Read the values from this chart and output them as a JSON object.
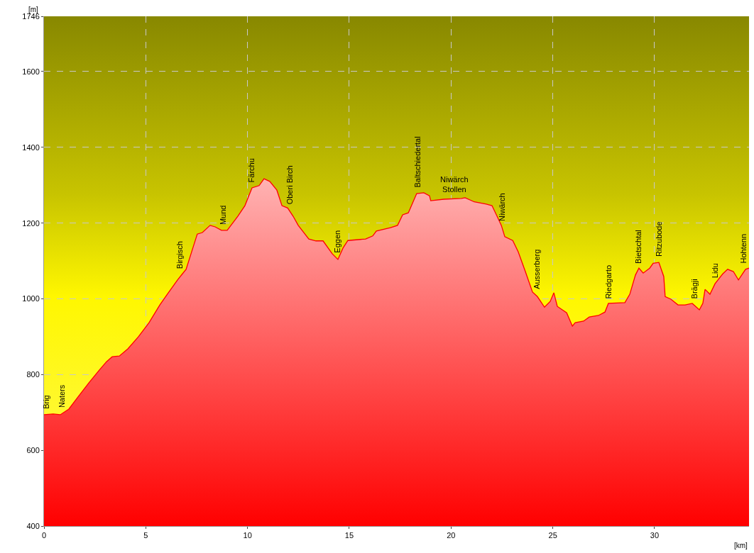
{
  "chart_data": {
    "type": "area",
    "xlabel": "[km]",
    "ylabel": "[m]",
    "xlim": [
      0,
      34.64
    ],
    "xticks": [
      0,
      5,
      10,
      15,
      20,
      25,
      30
    ],
    "ylim": [
      400,
      1746
    ],
    "yticks": [
      400,
      600,
      800,
      1000,
      1200,
      1400,
      1600,
      1746
    ],
    "grid": true,
    "line_style": "solid",
    "series": [
      {
        "color": "#ff0000",
        "x": [
          0,
          0.45,
          0.8,
          1.22,
          1.67,
          2.2,
          2.72,
          3.07,
          3.35,
          3.7,
          4.12,
          4.64,
          5.16,
          5.69,
          6.03,
          6.56,
          6.98,
          7.53,
          7.78,
          8.16,
          8.41,
          8.72,
          9.0,
          9.52,
          9.87,
          10.22,
          10.57,
          10.81,
          11.09,
          11.44,
          11.69,
          11.97,
          12.24,
          12.49,
          13.01,
          13.36,
          13.71,
          14.16,
          14.44,
          14.69,
          14.93,
          15.8,
          16.15,
          16.33,
          17.02,
          17.37,
          17.62,
          17.9,
          18.31,
          18.66,
          18.94,
          19.0,
          19.64,
          20.51,
          20.69,
          21.14,
          21.73,
          22.01,
          22.26,
          22.47,
          22.64,
          23.03,
          23.3,
          23.65,
          24.0,
          24.24,
          24.59,
          24.87,
          25.05,
          25.22,
          25.68,
          25.96,
          26.1,
          26.51,
          26.79,
          27.24,
          27.56,
          27.73,
          28.54,
          28.78,
          29.06,
          29.23,
          29.44,
          29.76,
          29.93,
          30.21,
          30.45,
          30.52,
          30.8,
          31.15,
          31.5,
          31.85,
          32.2,
          32.37,
          32.48,
          32.72,
          32.97,
          33.35,
          33.59,
          33.87,
          34.12,
          34.47,
          34.64
        ],
        "values": [
          694,
          696,
          694,
          709,
          741,
          778,
          812,
          834,
          847,
          849,
          868,
          900,
          937,
          984,
          1010,
          1050,
          1078,
          1171,
          1175,
          1194,
          1190,
          1181,
          1181,
          1218,
          1246,
          1293,
          1299,
          1317,
          1310,
          1287,
          1246,
          1240,
          1218,
          1194,
          1158,
          1153,
          1153,
          1119,
          1104,
          1134,
          1154,
          1158,
          1166,
          1179,
          1188,
          1194,
          1222,
          1227,
          1278,
          1280,
          1272,
          1259,
          1263,
          1265,
          1267,
          1256,
          1250,
          1246,
          1218,
          1194,
          1164,
          1154,
          1124,
          1072,
          1018,
          1006,
          978,
          993,
          1016,
          980,
          963,
          928,
          937,
          941,
          952,
          956,
          965,
          988,
          990,
          1012,
          1063,
          1081,
          1068,
          1081,
          1094,
          1096,
          1059,
          1006,
          999,
          984,
          984,
          988,
          971,
          988,
          1025,
          1012,
          1040,
          1066,
          1078,
          1072,
          1050,
          1078,
          1081
        ]
      }
    ],
    "annotations": [
      {
        "text": "Brig",
        "x": 0.1,
        "y": 694
      },
      {
        "text": "Naters",
        "x": 0.9,
        "y": 698
      },
      {
        "text": "Birgisch",
        "x": 6.66,
        "y": 1065
      },
      {
        "text": "Mund",
        "x": 8.8,
        "y": 1181
      },
      {
        "text": "Färchu",
        "x": 10.2,
        "y": 1293
      },
      {
        "text": "Oberi Birch",
        "x": 12.1,
        "y": 1235
      },
      {
        "text": "Eggen",
        "x": 14.4,
        "y": 1106
      },
      {
        "text": "Baltschiedertal",
        "x": 18.35,
        "y": 1279
      },
      {
        "text": "Niwärch\nStollen",
        "x": 20.15,
        "y": 1266
      },
      {
        "text": "Niwärch",
        "x": 22.5,
        "y": 1190
      },
      {
        "text": "Ausserberg",
        "x": 24.2,
        "y": 1010
      },
      {
        "text": "Riedgarto",
        "x": 27.7,
        "y": 985
      },
      {
        "text": "Bietschtal",
        "x": 29.2,
        "y": 1078
      },
      {
        "text": "Ritzubode",
        "x": 30.2,
        "y": 1096
      },
      {
        "text": "Brägji",
        "x": 31.95,
        "y": 985
      },
      {
        "text": "Lidu",
        "x": 32.95,
        "y": 1040
      },
      {
        "text": "Hohtenn",
        "x": 34.35,
        "y": 1078
      }
    ]
  }
}
